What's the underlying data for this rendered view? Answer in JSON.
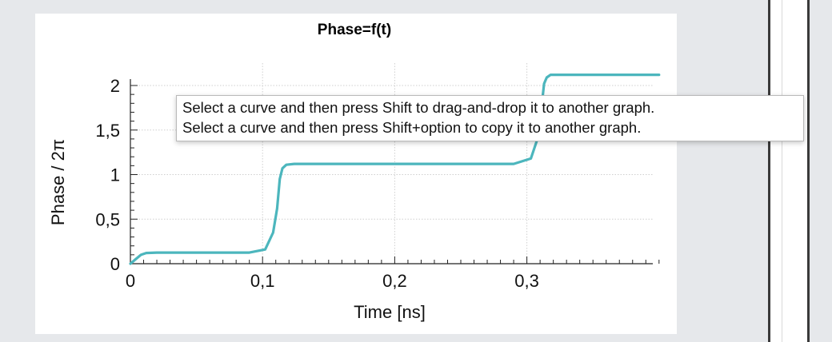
{
  "chart_data": {
    "type": "line",
    "title": "Phase=f(t)",
    "xlabel": "Time [ns]",
    "ylabel": "Phase / 2π",
    "xlim": [
      0,
      0.4
    ],
    "ylim": [
      0,
      2.1
    ],
    "xticks": [
      "0",
      "0,1",
      "0,2",
      "0,3"
    ],
    "yticks": [
      "0",
      "0,5",
      "1",
      "1,5",
      "2"
    ],
    "grid": true,
    "series": [
      {
        "color": "#4cb6bd",
        "x": [
          0,
          0.004,
          0.008,
          0.012,
          0.02,
          0.05,
          0.09,
          0.102,
          0.108,
          0.111,
          0.113,
          0.115,
          0.118,
          0.124,
          0.15,
          0.2,
          0.25,
          0.29,
          0.303,
          0.308,
          0.311,
          0.313,
          0.315,
          0.318,
          0.325,
          0.36,
          0.4
        ],
        "y": [
          0,
          0.05,
          0.1,
          0.12,
          0.125,
          0.125,
          0.125,
          0.16,
          0.35,
          0.62,
          0.95,
          1.07,
          1.11,
          1.12,
          1.12,
          1.12,
          1.12,
          1.12,
          1.18,
          1.4,
          1.75,
          2.02,
          2.09,
          2.12,
          2.12,
          2.12,
          2.12
        ]
      }
    ]
  },
  "tooltip": {
    "line1": "Select a curve and then press Shift to drag-and-drop it to another graph.",
    "line2": "Select a curve and then press Shift+option to copy it to another graph."
  }
}
